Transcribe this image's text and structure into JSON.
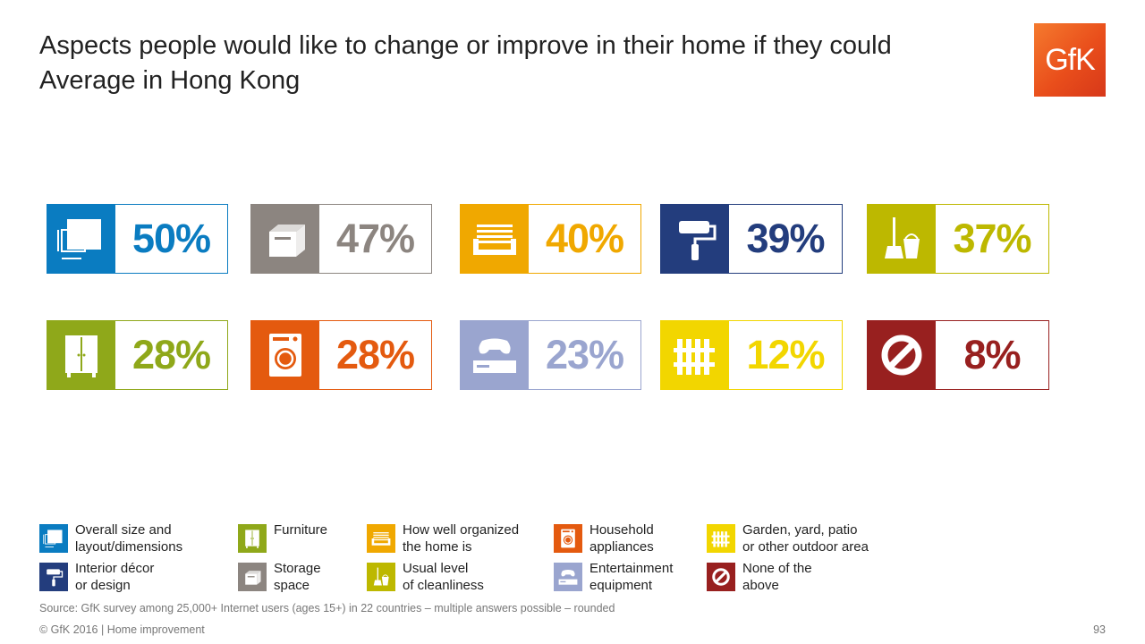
{
  "header": {
    "title_line1": "Aspects people would like to change or improve in their home if they could",
    "title_line2": "Average in Hong Kong",
    "logo_text": "GfK"
  },
  "chart_data": {
    "type": "table",
    "title": "Aspects people would like to change or improve in their home if they could",
    "subtitle": "Average in Hong Kong",
    "categories": [
      "Overall size and layout/dimensions",
      "Storage space",
      "How well organized the home is",
      "Interior décor or design",
      "Usual level of cleanliness",
      "Furniture",
      "Household appliances",
      "Entertainment equipment",
      "Garden, yard, patio or other outdoor area",
      "None of the above"
    ],
    "values": [
      50,
      47,
      40,
      39,
      37,
      28,
      28,
      23,
      12,
      8
    ],
    "labels": [
      "50%",
      "47%",
      "40%",
      "39%",
      "37%",
      "28%",
      "28%",
      "23%",
      "12%",
      "8%"
    ],
    "colors": [
      "#0a7cc1",
      "#8c8580",
      "#f0a800",
      "#233d7d",
      "#bdb800",
      "#8fa81a",
      "#e45a0f",
      "#9aa5cf",
      "#f2d600",
      "#98201f"
    ],
    "icons": [
      "size-icon",
      "box-icon",
      "tray-icon",
      "paint-roller-icon",
      "broom-bucket-icon",
      "wardrobe-icon",
      "washing-machine-icon",
      "game-console-icon",
      "fence-icon",
      "none-icon"
    ]
  },
  "legend": [
    {
      "line1": "Overall size and",
      "line2": "layout/dimensions",
      "icon": "size-icon",
      "color": "#0a7cc1"
    },
    {
      "line1": "Furniture",
      "line2": "",
      "icon": "wardrobe-icon",
      "color": "#8fa81a"
    },
    {
      "line1": "How well organized",
      "line2": "the home is",
      "icon": "tray-icon",
      "color": "#f0a800"
    },
    {
      "line1": "Household",
      "line2": "appliances",
      "icon": "washing-machine-icon",
      "color": "#e45a0f"
    },
    {
      "line1": "Garden, yard, patio",
      "line2": "or other outdoor area",
      "icon": "fence-icon",
      "color": "#f2d600"
    },
    {
      "line1": "Interior décor",
      "line2": "or design",
      "icon": "paint-roller-icon",
      "color": "#233d7d"
    },
    {
      "line1": "Storage",
      "line2": "space",
      "icon": "box-icon",
      "color": "#8c8580"
    },
    {
      "line1": "Usual level",
      "line2": "of cleanliness",
      "icon": "broom-bucket-icon",
      "color": "#bdb800"
    },
    {
      "line1": "Entertainment",
      "line2": "equipment",
      "icon": "game-console-icon",
      "color": "#9aa5cf"
    },
    {
      "line1": "None of the",
      "line2": "above",
      "icon": "none-icon",
      "color": "#98201f"
    }
  ],
  "footer": {
    "source": "Source: GfK survey among 25,000+ Internet users (ages 15+) in 22 countries – multiple answers possible – rounded",
    "copyright": "© GfK 2016 | Home improvement",
    "page_number": "93"
  }
}
